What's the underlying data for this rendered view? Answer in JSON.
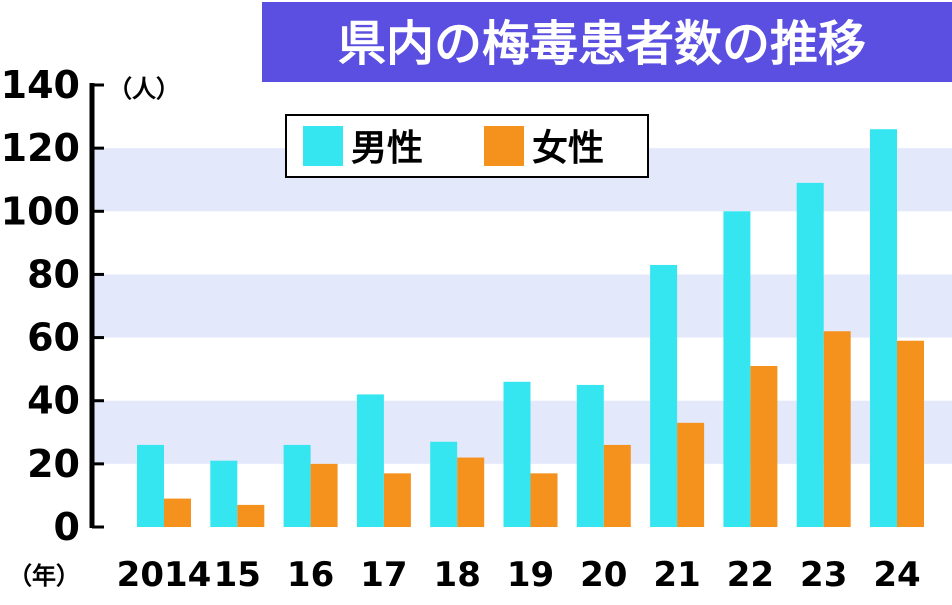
{
  "chart_data": {
    "type": "bar",
    "title": "県内の梅毒患者数の推移",
    "y_unit": "（人）",
    "x_unit": "（年）",
    "categories": [
      "2014",
      "15",
      "16",
      "17",
      "18",
      "19",
      "20",
      "21",
      "22",
      "23",
      "24"
    ],
    "series": [
      {
        "name": "男性",
        "color": "#35e6f0",
        "values": [
          26,
          21,
          26,
          42,
          27,
          46,
          45,
          83,
          100,
          109,
          126
        ]
      },
      {
        "name": "女性",
        "color": "#f5921e",
        "values": [
          9,
          7,
          20,
          17,
          22,
          17,
          26,
          33,
          51,
          62,
          59
        ]
      }
    ],
    "ylim": [
      0,
      140
    ],
    "yticks": [
      0,
      20,
      40,
      60,
      80,
      100,
      120,
      140
    ],
    "grid": true,
    "legend_position": "top-center",
    "colors": {
      "title_bg": "#5a4fe0",
      "band": "#e3e8fb",
      "axis": "#000000"
    }
  }
}
